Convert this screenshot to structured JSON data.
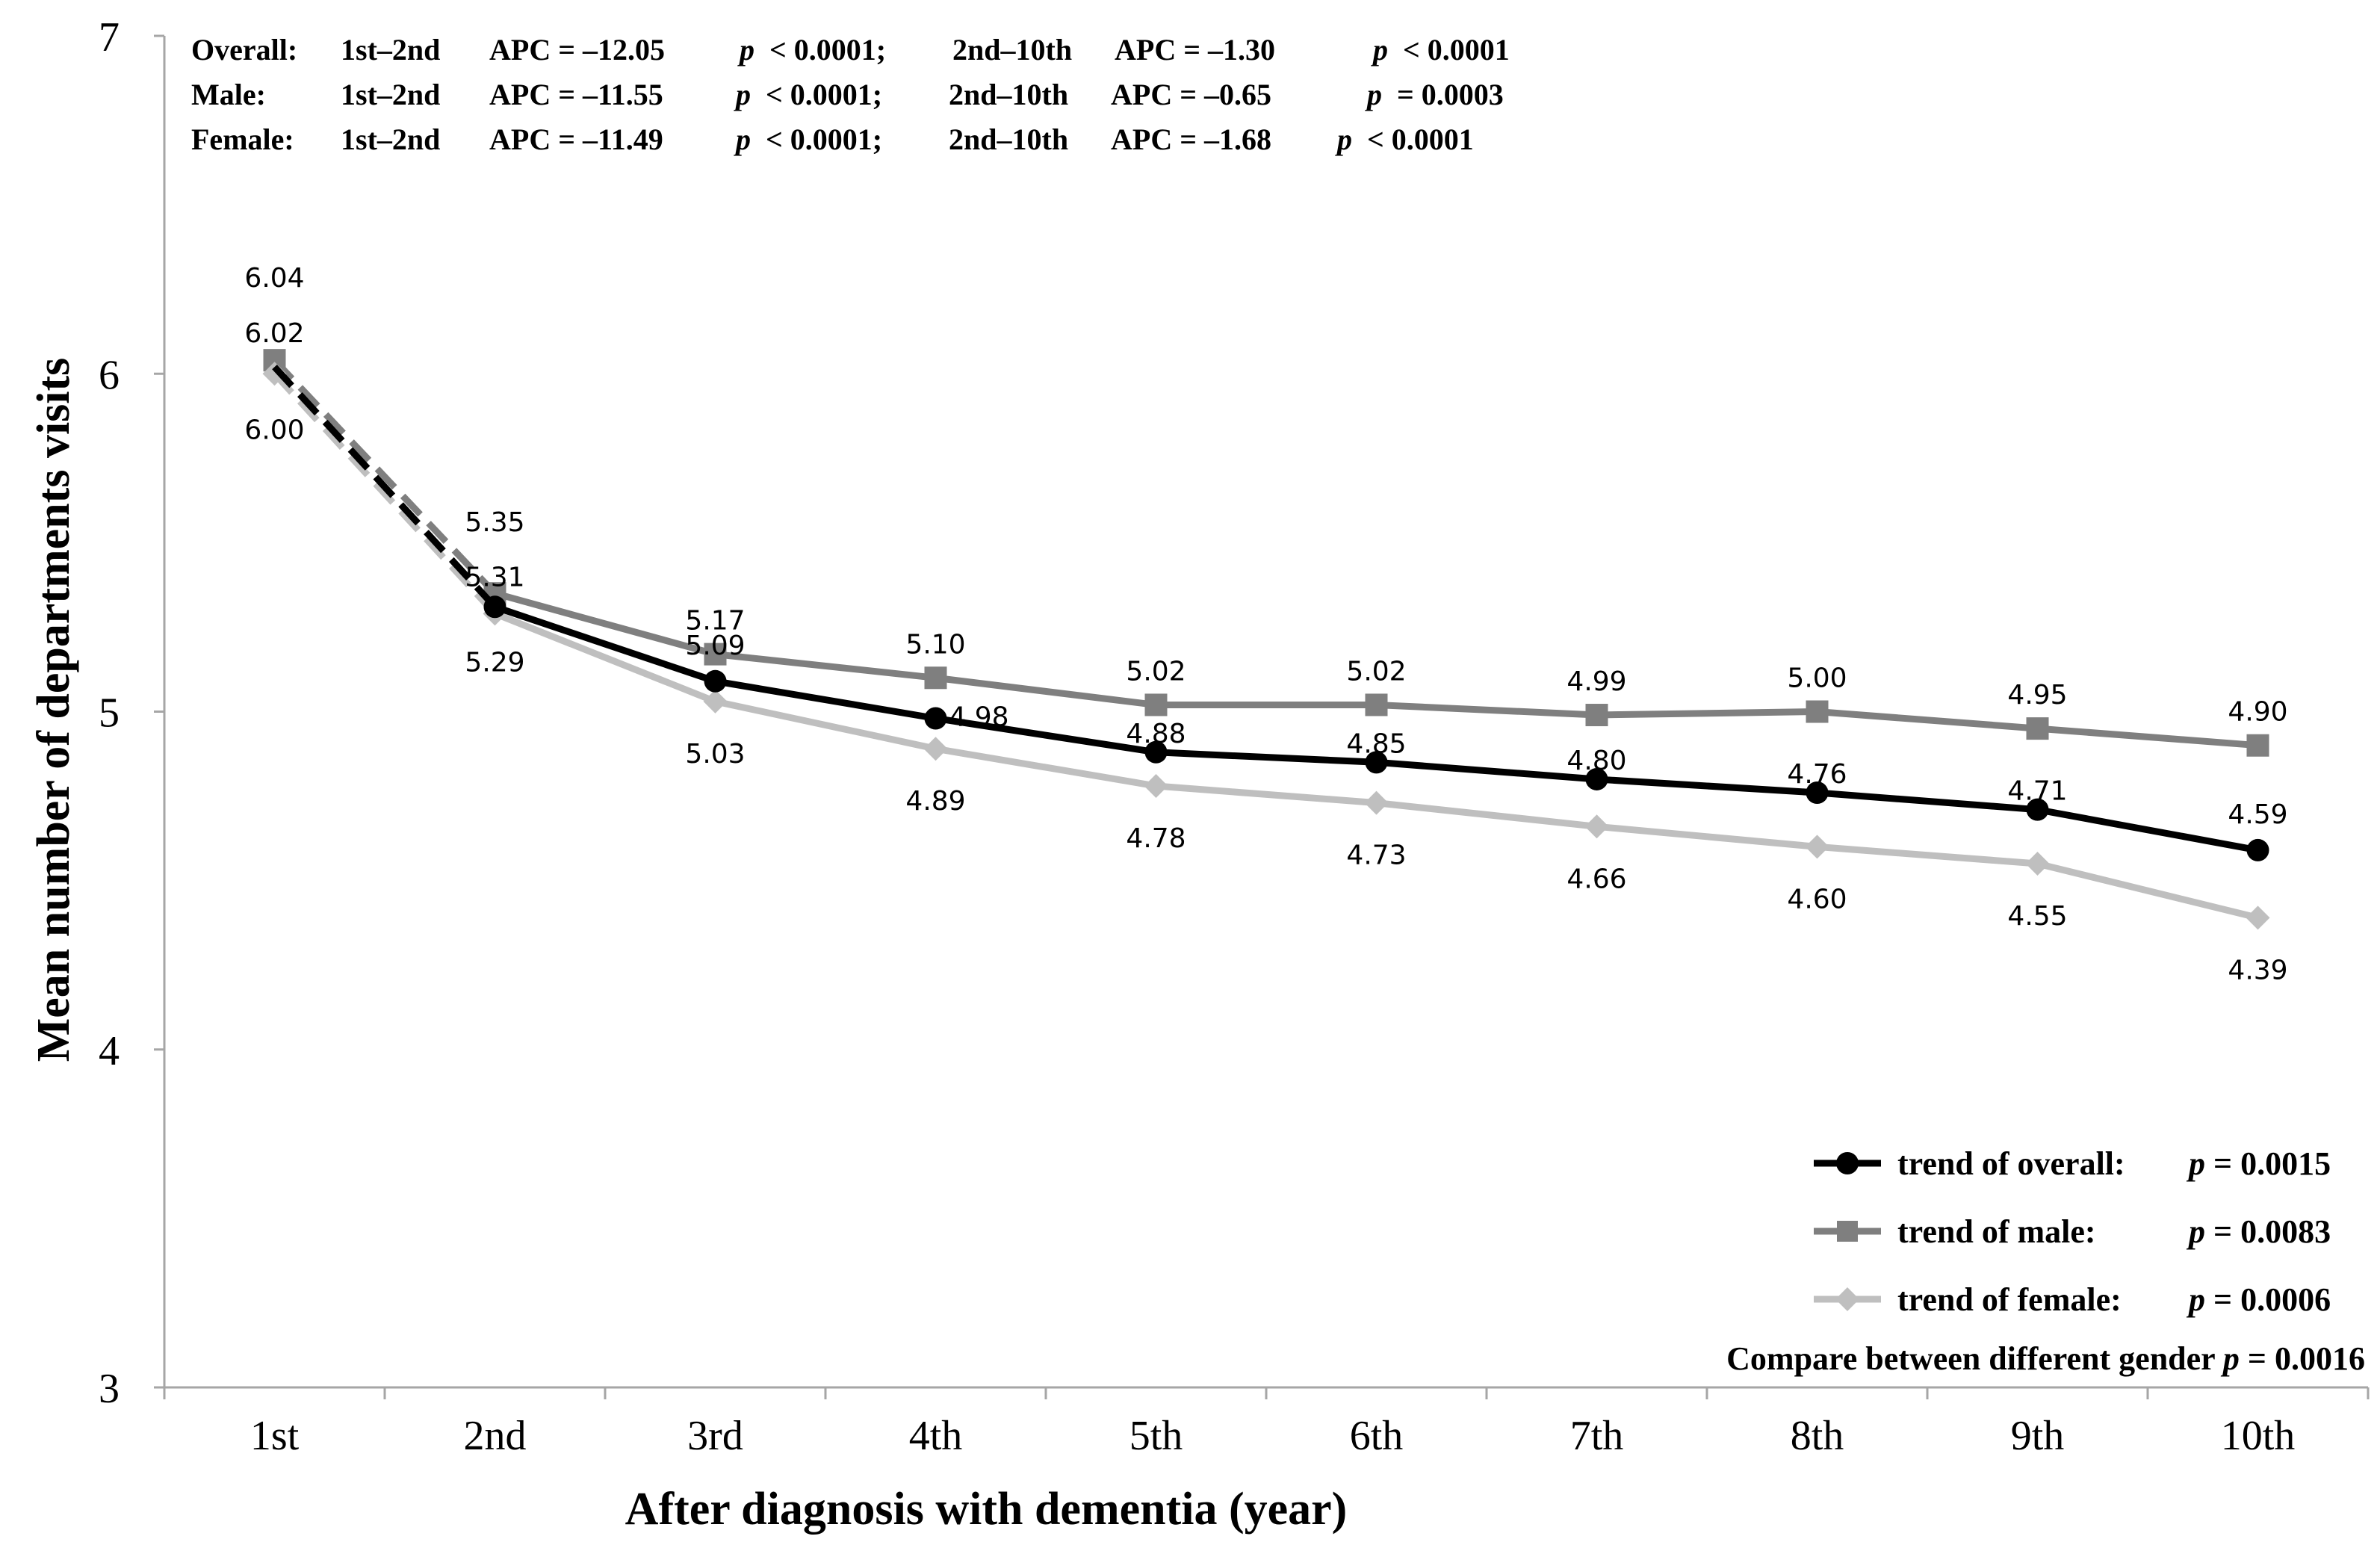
{
  "chart_data": {
    "type": "line",
    "title": "",
    "xlabel": "After diagnosis with dementia (year)",
    "ylabel": "Mean number of departments visits",
    "ylim": [
      3,
      7
    ],
    "yticks": [
      "3",
      "4",
      "5",
      "6",
      "7"
    ],
    "categories": [
      "1st",
      "2nd",
      "3rd",
      "4th",
      "5th",
      "6th",
      "7th",
      "8th",
      "9th",
      "10th"
    ],
    "series": [
      {
        "name": "overall",
        "color": "#000000",
        "marker": "circle",
        "values": [
          6.02,
          5.31,
          5.09,
          4.98,
          4.88,
          4.85,
          4.8,
          4.76,
          4.71,
          4.59
        ],
        "labels": [
          "6.02",
          "5.31",
          "5.09",
          "4.98",
          "4.88",
          "4.85",
          "4.80",
          "4.76",
          "4.71",
          "4.59"
        ]
      },
      {
        "name": "male",
        "color": "#7f7f7f",
        "marker": "square",
        "values": [
          6.04,
          5.35,
          5.17,
          5.1,
          5.02,
          5.02,
          4.99,
          5.0,
          4.95,
          4.9
        ],
        "labels": [
          "6.04",
          "5.35",
          "5.17",
          "5.10",
          "5.02",
          "5.02",
          "4.99",
          "5.00",
          "4.95",
          "4.90"
        ]
      },
      {
        "name": "female",
        "color": "#bfbfbf",
        "marker": "diamond",
        "values": [
          6.0,
          5.29,
          5.03,
          4.89,
          4.78,
          4.73,
          4.66,
          4.6,
          4.55,
          4.39
        ],
        "labels": [
          "6.00",
          "5.29",
          "5.03",
          "4.89",
          "4.78",
          "4.73",
          "4.66",
          "4.60",
          "4.55",
          "4.39"
        ]
      }
    ],
    "annotations": [
      {
        "group": "Overall:",
        "seg1": "1st–2nd",
        "apc1": "APC = –12.05",
        "p1_sym": "p",
        "p1_val": "< 0.0001;",
        "seg2": "2nd–10th",
        "apc2": "APC = –1.30",
        "p2_sym": "p",
        "p2_val": "< 0.0001"
      },
      {
        "group": "Male:",
        "seg1": "1st–2nd",
        "apc1": "APC = –11.55",
        "p1_sym": "p",
        "p1_val": "< 0.0001;",
        "seg2": "2nd–10th",
        "apc2": "APC = –0.65",
        "p2_sym": "p",
        "p2_val": "= 0.0003"
      },
      {
        "group": "Female:",
        "seg1": "1st–2nd",
        "apc1": "APC = –11.49",
        "p1_sym": "p",
        "p1_val": "< 0.0001;",
        "seg2": "2nd–10th",
        "apc2": "APC = –1.68",
        "p2_sym": "p",
        "p2_val": "< 0.0001"
      }
    ],
    "legend": {
      "position": "bottom-right",
      "items": [
        {
          "label": "trend of overall:",
          "p_sym": "p",
          "p_val": "= 0.0015"
        },
        {
          "label": "trend of male:",
          "p_sym": "p",
          "p_val": "= 0.0083"
        },
        {
          "label": "trend of female:",
          "p_sym": "p",
          "p_val": "= 0.0006"
        }
      ],
      "compare_label": "Compare between different gender",
      "compare_p_sym": "p",
      "compare_p_val": "= 0.0016"
    }
  }
}
